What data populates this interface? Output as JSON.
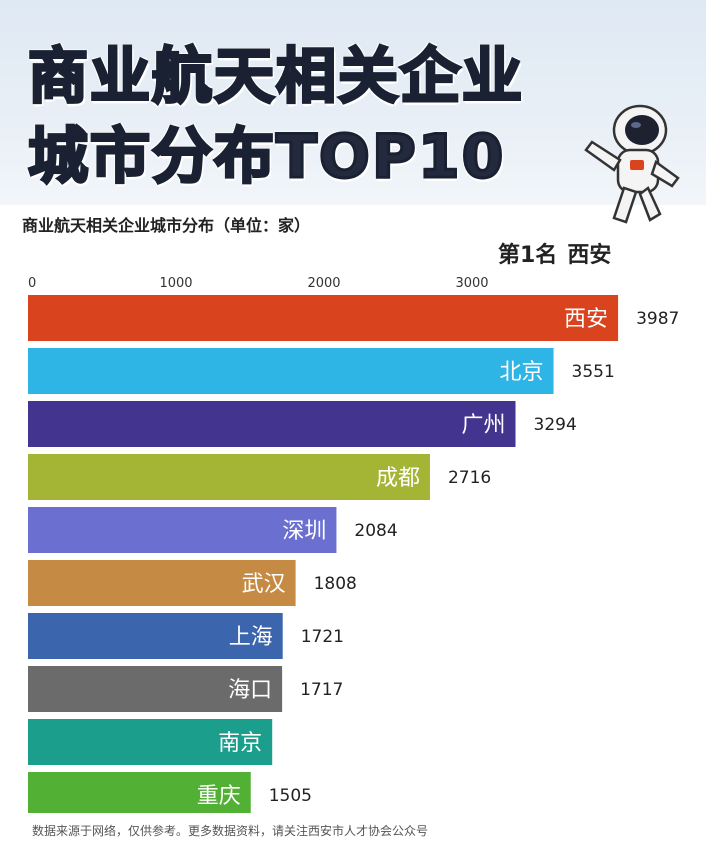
{
  "banner": {
    "title_line1": "商业航天相关企业",
    "title_line2": "城市分布TOP10"
  },
  "subtitle": "商业航天相关企业城市分布（单位：家）",
  "rank": {
    "label": "第1名",
    "city": "西安"
  },
  "footer": "数据来源于网络，仅供参考。更多数据资料，请关注西安市人才协会公众号",
  "chart_data": {
    "type": "bar",
    "orientation": "horizontal",
    "title": "商业航天相关企业城市分布（单位：家）",
    "xlim": [
      0,
      4000
    ],
    "x_ticks": [
      0,
      1000,
      2000,
      3000
    ],
    "categories": [
      "西安",
      "北京",
      "广州",
      "成都",
      "深圳",
      "武汉",
      "上海",
      "海口",
      "南京",
      "重庆"
    ],
    "values": [
      3987,
      3551,
      3294,
      2716,
      2084,
      1808,
      1721,
      1717,
      1650,
      1505
    ],
    "value_labels": [
      "3987",
      "3551",
      "3294",
      "2716",
      "2084",
      "1808",
      "1721",
      "1717",
      "",
      "1505"
    ],
    "colors": [
      "#d9431e",
      "#2fb4e6",
      "#43358f",
      "#a4b536",
      "#6a6fd0",
      "#c58a44",
      "#3b66ae",
      "#6b6b6b",
      "#1b9e8c",
      "#52b035"
    ],
    "grid": false,
    "legend": "none"
  }
}
